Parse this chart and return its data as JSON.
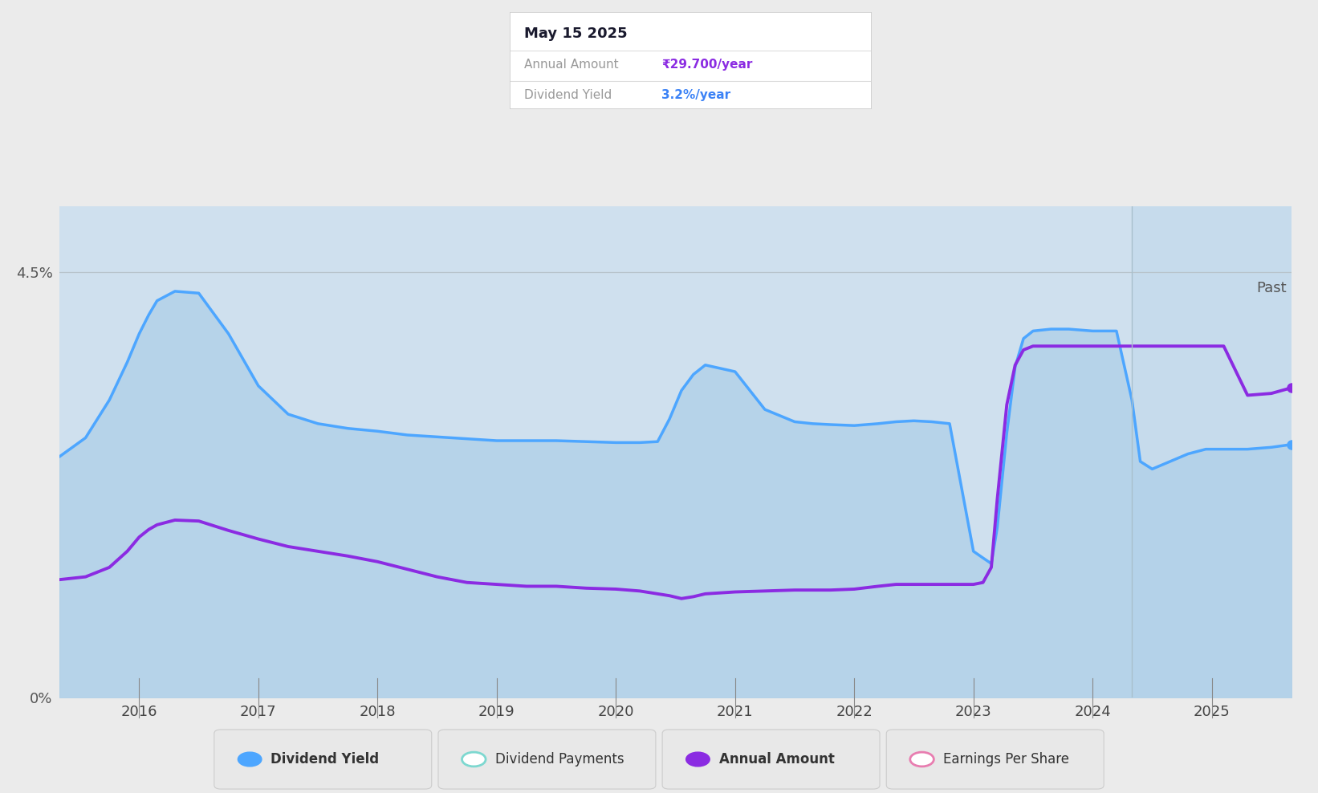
{
  "tooltip": {
    "date": "May 15 2025",
    "annual_amount_label": "Annual Amount",
    "annual_amount_value": "₹29.700/year",
    "dividend_yield_label": "Dividend Yield",
    "dividend_yield_value": "3.2%/year",
    "annual_amount_color": "#8b2be2",
    "dividend_yield_color": "#3b82f6"
  },
  "background_color": "#ebebeb",
  "chart_bg_color": "#cfe0ee",
  "past_region_color": "#c2d8ec",
  "past_boundary_x": 2024.33,
  "past_label": "Past",
  "ytick_labels": [
    "0%",
    "4.5%"
  ],
  "ytick_vals": [
    0.0,
    4.5
  ],
  "xticks": [
    2016,
    2017,
    2018,
    2019,
    2020,
    2021,
    2022,
    2023,
    2024,
    2025
  ],
  "xlim": [
    2015.33,
    2025.67
  ],
  "ylim": [
    0,
    5.2
  ],
  "chart_ylim_top": 4.5,
  "dividend_yield": {
    "color": "#4da6ff",
    "fill_color": "#aecfe8",
    "linewidth": 2.5,
    "x": [
      2015.33,
      2015.55,
      2015.75,
      2015.9,
      2016.0,
      2016.08,
      2016.15,
      2016.3,
      2016.5,
      2016.75,
      2017.0,
      2017.25,
      2017.5,
      2017.75,
      2018.0,
      2018.25,
      2018.5,
      2018.75,
      2019.0,
      2019.25,
      2019.5,
      2019.75,
      2020.0,
      2020.2,
      2020.35,
      2020.45,
      2020.55,
      2020.65,
      2020.75,
      2021.0,
      2021.25,
      2021.5,
      2021.65,
      2021.8,
      2022.0,
      2022.2,
      2022.35,
      2022.5,
      2022.65,
      2022.8,
      2023.0,
      2023.08,
      2023.15,
      2023.2,
      2023.28,
      2023.35,
      2023.42,
      2023.5,
      2023.65,
      2023.8,
      2024.0,
      2024.1,
      2024.2,
      2024.33,
      2024.4,
      2024.5,
      2024.65,
      2024.8,
      2024.95,
      2025.1,
      2025.3,
      2025.5,
      2025.67
    ],
    "y": [
      2.55,
      2.75,
      3.15,
      3.55,
      3.85,
      4.05,
      4.2,
      4.3,
      4.28,
      3.85,
      3.3,
      3.0,
      2.9,
      2.85,
      2.82,
      2.78,
      2.76,
      2.74,
      2.72,
      2.72,
      2.72,
      2.71,
      2.7,
      2.7,
      2.71,
      2.95,
      3.25,
      3.42,
      3.52,
      3.45,
      3.05,
      2.92,
      2.9,
      2.89,
      2.88,
      2.9,
      2.92,
      2.93,
      2.92,
      2.9,
      1.55,
      1.48,
      1.42,
      1.8,
      2.8,
      3.5,
      3.8,
      3.88,
      3.9,
      3.9,
      3.88,
      3.88,
      3.88,
      3.15,
      2.5,
      2.42,
      2.5,
      2.58,
      2.63,
      2.63,
      2.63,
      2.65,
      2.68
    ]
  },
  "annual_amount": {
    "color": "#8b2be2",
    "linewidth": 2.8,
    "x": [
      2015.33,
      2015.55,
      2015.75,
      2015.9,
      2016.0,
      2016.08,
      2016.15,
      2016.3,
      2016.5,
      2016.75,
      2017.0,
      2017.25,
      2017.5,
      2017.75,
      2018.0,
      2018.25,
      2018.5,
      2018.75,
      2019.0,
      2019.25,
      2019.5,
      2019.75,
      2020.0,
      2020.2,
      2020.35,
      2020.45,
      2020.55,
      2020.65,
      2020.75,
      2021.0,
      2021.25,
      2021.5,
      2021.65,
      2021.8,
      2022.0,
      2022.2,
      2022.35,
      2022.5,
      2022.65,
      2022.8,
      2023.0,
      2023.08,
      2023.15,
      2023.2,
      2023.28,
      2023.35,
      2023.42,
      2023.5,
      2023.65,
      2023.8,
      2024.0,
      2024.1,
      2024.2,
      2024.33,
      2024.4,
      2024.5,
      2024.65,
      2024.8,
      2024.95,
      2025.1,
      2025.3,
      2025.5,
      2025.67
    ],
    "y": [
      1.25,
      1.28,
      1.38,
      1.55,
      1.7,
      1.78,
      1.83,
      1.88,
      1.87,
      1.77,
      1.68,
      1.6,
      1.55,
      1.5,
      1.44,
      1.36,
      1.28,
      1.22,
      1.2,
      1.18,
      1.18,
      1.16,
      1.15,
      1.13,
      1.1,
      1.08,
      1.05,
      1.07,
      1.1,
      1.12,
      1.13,
      1.14,
      1.14,
      1.14,
      1.15,
      1.18,
      1.2,
      1.2,
      1.2,
      1.2,
      1.2,
      1.22,
      1.38,
      2.1,
      3.1,
      3.52,
      3.68,
      3.72,
      3.72,
      3.72,
      3.72,
      3.72,
      3.72,
      3.72,
      3.72,
      3.72,
      3.72,
      3.72,
      3.72,
      3.72,
      3.2,
      3.22,
      3.28
    ]
  },
  "legend_items": [
    {
      "label": "Dividend Yield",
      "marker_color": "#4da6ff",
      "hollow": false,
      "bold": true
    },
    {
      "label": "Dividend Payments",
      "marker_color": "#7dd8d0",
      "hollow": true,
      "bold": false
    },
    {
      "label": "Annual Amount",
      "marker_color": "#8b2be2",
      "hollow": false,
      "bold": true
    },
    {
      "label": "Earnings Per Share",
      "marker_color": "#e87db0",
      "hollow": true,
      "bold": false
    }
  ]
}
